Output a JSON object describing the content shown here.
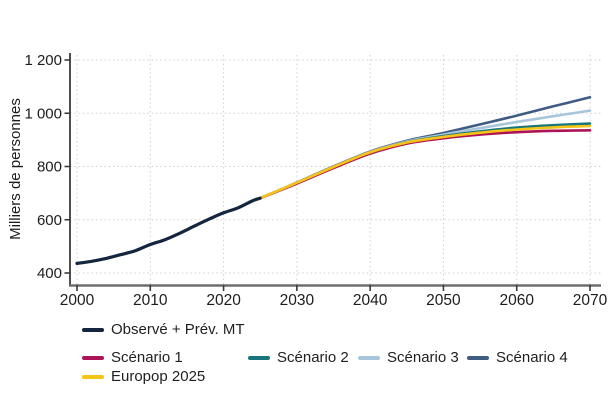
{
  "chart_data": {
    "type": "line",
    "title": "",
    "xlabel": "",
    "ylabel": "Milliers de personnes",
    "xlim": [
      2000,
      2070
    ],
    "ylim": [
      400,
      1200
    ],
    "grid": "dotted",
    "x_ticks": [
      2000,
      2010,
      2020,
      2030,
      2040,
      2050,
      2060,
      2070
    ],
    "y_ticks": {
      "values": [
        1200,
        1000,
        800,
        600,
        400
      ],
      "labels": [
        "1 200",
        "1 000",
        "800",
        "600",
        "400"
      ]
    },
    "series": [
      {
        "name": "Scénario 4",
        "color": "#3f5c83",
        "width": 2.6,
        "x": [
          2025,
          2030,
          2035,
          2040,
          2045,
          2050,
          2055,
          2060,
          2065,
          2070
        ],
        "y": [
          681,
          740,
          800,
          856,
          897,
          926,
          958,
          991,
          1026,
          1060
        ]
      },
      {
        "name": "Scénario 3",
        "color": "#a7c6db",
        "width": 2.6,
        "x": [
          2025,
          2030,
          2035,
          2040,
          2045,
          2050,
          2055,
          2060,
          2065,
          2070
        ],
        "y": [
          681,
          739,
          798,
          854,
          894,
          920,
          944,
          967,
          989,
          1010
        ]
      },
      {
        "name": "Scénario 2",
        "color": "#18757b",
        "width": 2.6,
        "x": [
          2025,
          2030,
          2035,
          2040,
          2045,
          2050,
          2055,
          2060,
          2065,
          2070
        ],
        "y": [
          681,
          738,
          797,
          852,
          891,
          914,
          932,
          946,
          955,
          961
        ]
      },
      {
        "name": "Scénario 1",
        "color": "#ac1457",
        "width": 2.6,
        "x": [
          2025,
          2030,
          2035,
          2040,
          2045,
          2050,
          2055,
          2060,
          2065,
          2070
        ],
        "y": [
          681,
          736,
          794,
          848,
          886,
          906,
          920,
          929,
          934,
          936
        ]
      },
      {
        "name": "Europop 2025",
        "color": "#f6c416",
        "width": 2.6,
        "x": [
          2025,
          2030,
          2035,
          2040,
          2045,
          2050,
          2055,
          2060,
          2065,
          2070
        ],
        "y": [
          681,
          739,
          798,
          853,
          890,
          911,
          927,
          939,
          947,
          952
        ]
      },
      {
        "name": "Observé + Prév. MT",
        "color": "#14263e",
        "width": 3.2,
        "x": [
          2000,
          2002,
          2004,
          2006,
          2008,
          2010,
          2012,
          2014,
          2016,
          2018,
          2020,
          2022,
          2024,
          2025
        ],
        "y": [
          436,
          444,
          455,
          469,
          484,
          507,
          525,
          549,
          576,
          602,
          626,
          645,
          672,
          681
        ]
      }
    ],
    "legend_position": "bottom"
  },
  "legend": {
    "rows": [
      [
        {
          "label": "Observé + Prév. MT",
          "color": "#14263e"
        }
      ],
      [
        {
          "label": "Scénario 1",
          "color": "#ac1457"
        },
        {
          "label": "Scénario 2",
          "color": "#18757b"
        },
        {
          "label": "Scénario 3",
          "color": "#a7c6db"
        },
        {
          "label": "Scénario 4",
          "color": "#3f5c83"
        }
      ],
      [
        {
          "label": "Europop 2025",
          "color": "#f6c416"
        }
      ]
    ]
  },
  "colors": {
    "axis_left": "#3a3a3a",
    "axis_bottom": "#6e6e6e",
    "grid": "#cfcfcf",
    "tick_text": "#1c1c1c"
  }
}
